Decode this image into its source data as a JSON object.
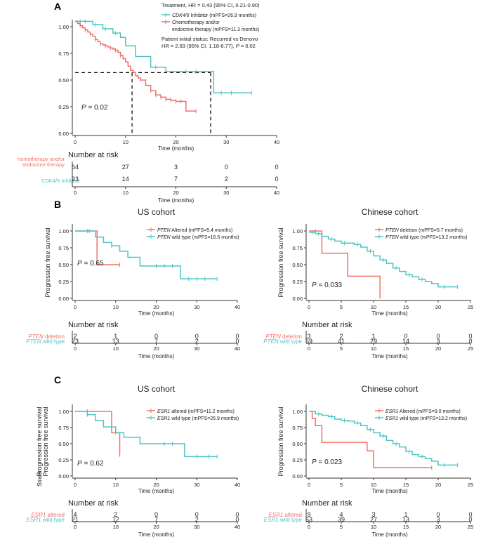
{
  "panels": {
    "A": {
      "label": "A"
    },
    "B": {
      "label": "B"
    },
    "C": {
      "label": "C"
    }
  },
  "chart_data": [
    {
      "id": "A",
      "type": "line",
      "title": "",
      "xlabel": "Time (months)",
      "ylabel": "",
      "xlim": [
        0,
        40
      ],
      "ylim": [
        0,
        1
      ],
      "xticks": [
        "0",
        "10",
        "20",
        "30",
        "40"
      ],
      "yticks": [
        "0.00",
        "0.25",
        "0.50",
        "0.75",
        "1.00"
      ],
      "pvalue": {
        "prefix": "P",
        "text": " = 0.02"
      },
      "median_line": {
        "y": 0.57,
        "x_values": [
          11.3,
          26.9
        ]
      },
      "legend": {
        "header": "Treatment, HR = 0.43 (95% CI, 0.21-0.90)",
        "items": [
          {
            "italic": "CDK4/6",
            "text": " Inhibitor (mPFS=26.9 months)",
            "color": "#4ec4c4"
          },
          {
            "italic": "",
            "text": "Chemotherapy and/or",
            "text2": "endocrine therapy (mPFS=11.3 months)",
            "color": "#f0706a"
          }
        ],
        "note_line1": "Patient initial status: Recurred vs Denovo",
        "note_line2_pre": "HR = 2.83 (95% CI, 1.18-6.77), ",
        "note_line2_p": "P",
        "note_line2_post": " = 0.02"
      },
      "series": [
        {
          "name": "CDK4/6 Inhibitor",
          "color": "#4ec4c4",
          "x": [
            0,
            3,
            3.5,
            5,
            5.5,
            7,
            7.5,
            9,
            10,
            12,
            14,
            15,
            18,
            27,
            27.5,
            35
          ],
          "y": [
            1.05,
            1.05,
            1.02,
            1.02,
            0.98,
            0.98,
            0.94,
            0.9,
            0.82,
            0.72,
            0.72,
            0.62,
            0.58,
            0.58,
            0.38,
            0.38
          ],
          "censor": [
            1,
            2,
            4,
            6,
            8,
            16,
            22,
            24,
            29,
            31,
            35
          ]
        },
        {
          "name": "Chemotherapy and/or endocrine therapy",
          "color": "#f0706a",
          "x": [
            0,
            0.5,
            1,
            1.5,
            2,
            2.5,
            3,
            3.5,
            4,
            4.5,
            5,
            5.5,
            6,
            6.5,
            7,
            7.5,
            8,
            8.5,
            9,
            9.5,
            10,
            10.5,
            11,
            11.5,
            12,
            12.5,
            13,
            14,
            15,
            16,
            17,
            18,
            19,
            20,
            22,
            24
          ],
          "y": [
            1.05,
            1.03,
            1.01,
            0.99,
            0.97,
            0.95,
            0.93,
            0.91,
            0.88,
            0.86,
            0.84,
            0.83,
            0.82,
            0.81,
            0.8,
            0.79,
            0.78,
            0.76,
            0.73,
            0.7,
            0.67,
            0.63,
            0.59,
            0.57,
            0.54,
            0.52,
            0.5,
            0.45,
            0.4,
            0.36,
            0.34,
            0.32,
            0.31,
            0.3,
            0.21,
            0.21
          ],
          "censor": [
            1,
            2,
            3,
            4,
            5,
            6,
            7,
            8,
            9,
            13,
            15,
            16,
            17,
            18,
            19,
            20,
            21,
            24
          ]
        }
      ],
      "risk_table": {
        "title": "Number at risk",
        "rows": [
          {
            "label": "hemotherapy and/or",
            "label2": "endocrine therapy",
            "color": "#f0706a",
            "values": [
              "64",
              "27",
              "3",
              "0",
              "0"
            ]
          },
          {
            "label": "CDK4/6 Inhibitor",
            "label2": "",
            "color": "#4ec4c4",
            "values": [
              "23",
              "14",
              "7",
              "2",
              "0"
            ]
          }
        ],
        "xticks": [
          "0",
          "10",
          "20",
          "30",
          "40"
        ],
        "xlabel": "Time (months)"
      }
    },
    {
      "id": "B-US",
      "type": "line",
      "title": "US cohort",
      "xlabel": "Time (months)",
      "ylabel": "Progression free survival",
      "xlim": [
        0,
        40
      ],
      "ylim": [
        0,
        1
      ],
      "xticks": [
        "0",
        "10",
        "20",
        "30",
        "40"
      ],
      "yticks": [
        "0.00",
        "0.25",
        "0.50",
        "0.75",
        "1.00"
      ],
      "pvalue": {
        "prefix": "P",
        "text": " = 0.65"
      },
      "legend": {
        "items": [
          {
            "italic": "PTEN",
            "text": " Altered (mPFS=5.4 months)",
            "color": "#f0706a"
          },
          {
            "italic": "PTEN",
            "text": " wild type (mPFS=16.5 months)",
            "color": "#4ec4c4"
          }
        ]
      },
      "series": [
        {
          "name": "PTEN Altered",
          "color": "#f0706a",
          "x": [
            0,
            3.5,
            5.4,
            11
          ],
          "y": [
            1.0,
            1.0,
            0.5,
            0.5
          ],
          "censor": [
            3.5,
            11
          ]
        },
        {
          "name": "PTEN wild type",
          "color": "#4ec4c4",
          "x": [
            0,
            3,
            5,
            7,
            9,
            11,
            13,
            16,
            20,
            24,
            26,
            35
          ],
          "y": [
            1.0,
            1.0,
            0.91,
            0.83,
            0.78,
            0.7,
            0.61,
            0.48,
            0.48,
            0.48,
            0.29,
            0.29
          ],
          "censor": [
            3,
            9,
            20,
            22,
            24,
            28,
            30,
            32,
            35
          ]
        }
      ],
      "risk_table": {
        "title": "Number at risk",
        "rows": [
          {
            "italic": "PTEN",
            "label": " deletion",
            "color": "#f0706a",
            "values": [
              "2",
              "1",
              "0",
              "0",
              "0"
            ]
          },
          {
            "italic": "PTEN",
            "label": " wild type",
            "color": "#4ec4c4",
            "values": [
              "23",
              "13",
              "7",
              "2",
              "0"
            ]
          }
        ],
        "xticks": [
          "0",
          "10",
          "20",
          "30",
          "40"
        ],
        "xlabel": "Time (months)"
      }
    },
    {
      "id": "B-CN",
      "type": "line",
      "title": "Chinese cohort",
      "xlabel": "Time (months)",
      "ylabel": "Progression free survival",
      "xlim": [
        0,
        25
      ],
      "ylim": [
        0,
        1
      ],
      "xticks": [
        "0",
        "5",
        "10",
        "15",
        "20",
        "25"
      ],
      "yticks": [
        "0.00",
        "0.25",
        "0.50",
        "0.75",
        "1.00"
      ],
      "pvalue": {
        "prefix": "P",
        "text": " = 0.033"
      },
      "legend": {
        "items": [
          {
            "italic": "PTEN",
            "text": " deletion (mPFS=5.7 months)",
            "color": "#f0706a"
          },
          {
            "italic": "PTEN",
            "text": " wild type (mPFS=13.2 months)",
            "color": "#4ec4c4"
          }
        ]
      },
      "series": [
        {
          "name": "PTEN deletion",
          "color": "#f0706a",
          "x": [
            0,
            1,
            2,
            6,
            11,
            11
          ],
          "y": [
            1.0,
            1.0,
            0.67,
            0.33,
            0.33,
            0.0
          ],
          "censor": [
            1
          ]
        },
        {
          "name": "PTEN wild type",
          "color": "#4ec4c4",
          "x": [
            0,
            1,
            2,
            3,
            4,
            5,
            6,
            7,
            8,
            9,
            10,
            11,
            12,
            13,
            14,
            15,
            16,
            17,
            18,
            19,
            20,
            23
          ],
          "y": [
            0.98,
            0.96,
            0.92,
            0.88,
            0.85,
            0.82,
            0.82,
            0.8,
            0.76,
            0.7,
            0.63,
            0.57,
            0.52,
            0.45,
            0.4,
            0.35,
            0.32,
            0.28,
            0.25,
            0.22,
            0.17,
            0.17
          ],
          "censor": [
            0.5,
            1.5,
            3.5,
            5.5,
            7.5,
            9.5,
            11.5,
            13.5,
            15.5,
            17.5,
            21,
            23
          ]
        }
      ],
      "risk_table": {
        "title": "Number at risk",
        "rows": [
          {
            "italic": "PTEN",
            "label": " deletion",
            "color": "#f0706a",
            "values": [
              "3",
              "2",
              "1",
              "0",
              "0",
              "0"
            ]
          },
          {
            "italic": "PTEN",
            "label": " wild type",
            "color": "#4ec4c4",
            "values": [
              "59",
              "41",
              "29",
              "14",
              "3",
              "0"
            ]
          }
        ],
        "xticks": [
          "0",
          "5",
          "10",
          "15",
          "20",
          "25"
        ],
        "xlabel": "Time (months)"
      }
    },
    {
      "id": "C-US",
      "type": "line",
      "title": "US cohort",
      "xlabel": "Time (months)",
      "ylabel": "Progression free survival",
      "ylabel_overlap": "Progression free survival",
      "strata": "Strata",
      "xlim": [
        0,
        40
      ],
      "ylim": [
        0,
        1
      ],
      "xticks": [
        "0",
        "10",
        "20",
        "30",
        "40"
      ],
      "yticks": [
        "0.00",
        "0.25",
        "0.50",
        "0.75",
        "1.00"
      ],
      "pvalue": {
        "prefix": "P",
        "text": " = 0.62"
      },
      "legend": {
        "items": [
          {
            "italic": "ESR1",
            "text": " altered (mPFS=11.2 months)",
            "color": "#f0706a"
          },
          {
            "italic": "ESR1",
            "text": " wild type (mPFS=26.9 months)",
            "color": "#4ec4c4"
          }
        ]
      },
      "series": [
        {
          "name": "ESR1 altered",
          "color": "#f0706a",
          "x": [
            0,
            9,
            9,
            11,
            11
          ],
          "y": [
            1.0,
            1.0,
            0.67,
            0.67,
            0.33
          ],
          "censor": [
            3,
            11
          ]
        },
        {
          "name": "ESR1 wild type",
          "color": "#4ec4c4",
          "x": [
            0,
            3,
            5,
            7,
            10,
            12,
            16,
            20,
            24,
            27,
            35
          ],
          "y": [
            1.0,
            0.95,
            0.86,
            0.76,
            0.67,
            0.6,
            0.5,
            0.5,
            0.5,
            0.3,
            0.3
          ],
          "censor": [
            3,
            10,
            22,
            24,
            30,
            33,
            35
          ]
        }
      ],
      "risk_table": {
        "title": "Number at risk",
        "rows": [
          {
            "italic": "ESR1",
            "label": " altered",
            "color": "#f0706a",
            "values": [
              "4",
              "2",
              "0",
              "0",
              "0"
            ]
          },
          {
            "italic": "ESR1",
            "label": " wild type",
            "color": "#4ec4c4",
            "values": [
              "21",
              "12",
              "7",
              "2",
              "0"
            ]
          }
        ],
        "xticks": [
          "0",
          "10",
          "20",
          "30",
          "40"
        ],
        "xlabel": "Time (months)"
      }
    },
    {
      "id": "C-CN",
      "type": "line",
      "title": "Chinese cohort",
      "xlabel": "Time (months)",
      "ylabel": "Progression free survival",
      "xlim": [
        0,
        25
      ],
      "ylim": [
        0,
        1
      ],
      "xticks": [
        "0",
        "5",
        "10",
        "15",
        "20",
        "25"
      ],
      "yticks": [
        "0.00",
        "0.25",
        "0.50",
        "0.75",
        "1.00"
      ],
      "pvalue": {
        "prefix": "P",
        "text": " = 0.023"
      },
      "legend": {
        "items": [
          {
            "italic": "ESR1",
            "text": " Altered (mPFS=9.0 months)",
            "color": "#f0706a"
          },
          {
            "italic": "ESR1",
            "text": " wild type (mPFS=13.2 months)",
            "color": "#4ec4c4"
          }
        ]
      },
      "series": [
        {
          "name": "ESR1 Altered",
          "color": "#f0706a",
          "x": [
            0,
            0.5,
            1,
            2,
            9,
            10,
            19
          ],
          "y": [
            1.0,
            0.89,
            0.78,
            0.52,
            0.39,
            0.13,
            0.13
          ],
          "censor": [
            19
          ]
        },
        {
          "name": "ESR1 wild type",
          "color": "#4ec4c4",
          "x": [
            0,
            1,
            2,
            3,
            4,
            5,
            6,
            7,
            8,
            9,
            10,
            11,
            12,
            13,
            14,
            15,
            16,
            17,
            18,
            19,
            20,
            23
          ],
          "y": [
            1.0,
            0.96,
            0.94,
            0.92,
            0.88,
            0.86,
            0.85,
            0.82,
            0.78,
            0.72,
            0.67,
            0.62,
            0.55,
            0.5,
            0.45,
            0.38,
            0.33,
            0.3,
            0.27,
            0.23,
            0.17,
            0.17
          ],
          "censor": [
            1.5,
            3.5,
            5.5,
            7.5,
            9.5,
            11.5,
            13.5,
            15.5,
            17.5,
            21,
            23
          ]
        }
      ],
      "risk_table": {
        "title": "Number at risk",
        "rows": [
          {
            "italic": "ESR1",
            "label": " altered",
            "color": "#f0706a",
            "values": [
              "9",
              "4",
              "3",
              "1",
              "0",
              "0"
            ]
          },
          {
            "italic": "ESR1",
            "label": " wild type",
            "color": "#4ec4c4",
            "values": [
              "53",
              "39",
              "27",
              "13",
              "3",
              "0"
            ]
          }
        ],
        "xticks": [
          "0",
          "5",
          "10",
          "15",
          "20",
          "25"
        ],
        "xlabel": "Time (months)"
      }
    }
  ]
}
